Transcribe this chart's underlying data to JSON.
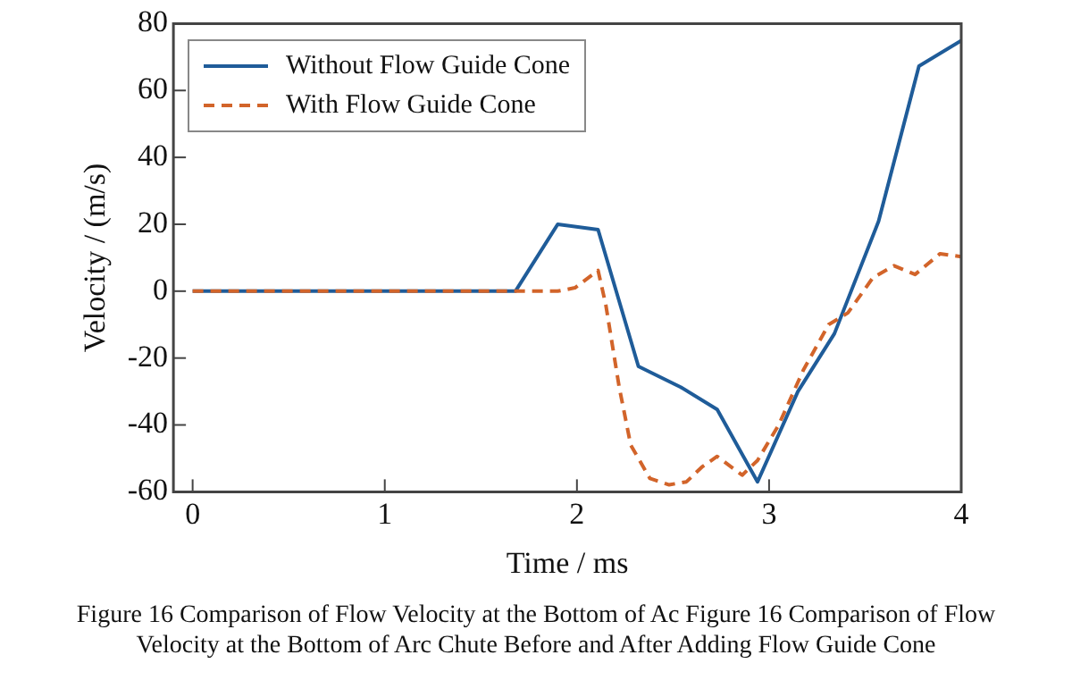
{
  "chart_data": {
    "type": "line",
    "xlabel": "Time / ms",
    "ylabel": "Velocity / (m/s)",
    "xlim": [
      -0.1,
      4
    ],
    "xticks": [
      0,
      1,
      2,
      3,
      4
    ],
    "ylim": [
      -60,
      80
    ],
    "yticks": [
      -60,
      -40,
      -20,
      0,
      20,
      40,
      60,
      80
    ],
    "grid": false,
    "legend": "top left",
    "marker": "none",
    "annotations": [
      "Figure 16 Comparison of Flow Velocity at the Bottom of Ac Figure 16 Comparison of Flow Velocity at the Bottom of Arc Chute Before and After Adding Flow Guide Cone"
    ],
    "series": [
      {
        "name": "Without Flow Guide Cone",
        "color": "#1f5c99",
        "line_style": "solid",
        "x": [
          0,
          1.68,
          1.9,
          2.11,
          2.32,
          2.54,
          2.73,
          2.94,
          3.15,
          3.34,
          3.57,
          3.78,
          4
        ],
        "values": [
          0,
          0,
          20,
          18.4,
          -22.5,
          -28.7,
          -35.4,
          -57,
          -30,
          -12.7,
          20.9,
          67.3,
          74.9
        ]
      },
      {
        "name": "With Flow Guide Cone",
        "color": "#d2642a",
        "line_style": "dashed",
        "x": [
          0,
          1.9,
          1.99,
          2.11,
          2.15,
          2.22,
          2.28,
          2.38,
          2.48,
          2.57,
          2.65,
          2.73,
          2.86,
          2.94,
          3.05,
          3.18,
          3.31,
          3.41,
          3.54,
          3.65,
          3.76,
          3.89,
          4
        ],
        "values": [
          0,
          0,
          1,
          6.2,
          -4,
          -28.7,
          -46,
          -56,
          -57.9,
          -57,
          -52.6,
          -49.4,
          -55,
          -50.6,
          -40,
          -23.4,
          -10,
          -6.5,
          4,
          7.6,
          5,
          11.2,
          10.3
        ]
      }
    ]
  }
}
